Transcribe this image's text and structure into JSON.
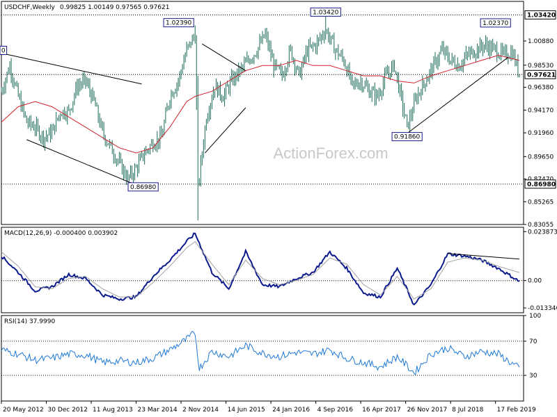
{
  "header": {
    "symbol": "USDCHF,Weekly",
    "ohlc": "0.99825 1.00149 0.97565 0.97621"
  },
  "watermark": "ActionForex.com",
  "colors": {
    "price_bars": "#1c6b5a",
    "sma": "#d0202a",
    "macd_line": "#0a1a8c",
    "signal_line": "#a0a0a0",
    "rsi_line": "#1e78d6",
    "trendline": "#000000",
    "level_line": "#000000"
  },
  "chart_data": [
    {
      "type": "candlestick",
      "panel": "price",
      "title": "USDCHF,Weekly",
      "ohlc_last": {
        "open": 0.99825,
        "high": 1.00149,
        "low": 0.97565,
        "close": 0.97621
      },
      "y_ticks": [
        "1.00880",
        "0.98530",
        "0.96380",
        "0.94170",
        "0.91960",
        "0.89650",
        "0.87470",
        "0.85265",
        "0.83055"
      ],
      "y_tick_values": [
        1.0088,
        0.9853,
        0.9638,
        0.9417,
        0.9196,
        0.8965,
        0.8747,
        0.85265,
        0.83055
      ],
      "ylim": [
        0.83055,
        1.0473
      ],
      "right_price_labels": [
        {
          "label": "1.03420",
          "value": 1.0342
        },
        {
          "label": "0.97621",
          "value": 0.97621
        },
        {
          "label": "0.86980",
          "value": 0.8698
        }
      ],
      "annotations": [
        {
          "label": "0",
          "value": 0.997,
          "week": 0
        },
        {
          "label": "1.02390",
          "value": 1.0239,
          "week": 138
        },
        {
          "label": "1.03420",
          "value": 1.0342,
          "week": 231
        },
        {
          "label": "1.02370",
          "value": 1.0237,
          "week": 352
        },
        {
          "label": "0.91860",
          "value": 0.9186,
          "week": 289
        },
        {
          "label": "0.86980",
          "value": 0.8698,
          "week": 101
        }
      ],
      "levels": [
        1.0342,
        0.97621,
        0.8698
      ],
      "series": [
        {
          "type": "bar",
          "weeks": [
            0,
            6,
            12,
            18,
            24,
            30,
            36,
            42,
            48,
            54,
            60,
            66,
            72,
            78,
            84,
            90,
            96,
            102,
            108,
            114,
            120,
            126,
            132,
            138,
            140,
            146,
            152,
            158,
            164,
            170,
            176,
            182,
            188,
            194,
            200,
            206,
            212,
            218,
            224,
            231,
            238,
            244,
            250,
            256,
            262,
            268,
            274,
            280,
            286,
            289,
            296,
            302,
            308,
            314,
            320,
            326,
            332,
            338,
            344,
            352,
            358,
            364,
            369
          ],
          "close": [
            0.96,
            0.985,
            0.955,
            0.93,
            0.925,
            0.915,
            0.92,
            0.94,
            0.94,
            0.965,
            0.97,
            0.95,
            0.92,
            0.905,
            0.89,
            0.875,
            0.885,
            0.9,
            0.91,
            0.915,
            0.955,
            0.97,
            1.0,
            1.015,
            0.865,
            0.935,
            0.965,
            0.955,
            0.97,
            0.98,
            0.99,
            1.0,
            1.015,
            0.985,
            0.975,
            1.0,
            0.975,
            1.0,
            1.005,
            1.02,
            1.0,
            0.99,
            0.965,
            0.97,
            0.96,
            0.955,
            0.975,
            0.985,
            0.945,
            0.925,
            0.955,
            0.97,
            0.985,
            1.0,
            0.99,
            0.985,
            0.995,
            1.0,
            1.005,
            1.0,
            0.995,
            0.998,
            0.9762
          ]
        },
        {
          "name": "",
          "type": "line",
          "weeks": [
            0,
            12,
            24,
            36,
            48,
            60,
            72,
            84,
            96,
            108,
            120,
            132,
            138,
            150,
            162,
            174,
            186,
            198,
            210,
            222,
            234,
            246,
            258,
            270,
            282,
            294,
            306,
            318,
            330,
            342,
            354,
            369
          ],
          "values": [
            0.93,
            0.945,
            0.95,
            0.945,
            0.935,
            0.925,
            0.915,
            0.905,
            0.9,
            0.905,
            0.925,
            0.95,
            0.955,
            0.96,
            0.97,
            0.98,
            0.985,
            0.985,
            0.99,
            0.985,
            0.985,
            0.98,
            0.975,
            0.975,
            0.97,
            0.968,
            0.975,
            0.98,
            0.985,
            0.99,
            0.995,
            0.99
          ]
        }
      ],
      "trendlines": [
        {
          "from": {
            "week": 0,
            "value": 0.997
          },
          "to": {
            "week": 100,
            "value": 0.967
          }
        },
        {
          "from": {
            "week": 18,
            "value": 0.913
          },
          "to": {
            "week": 103,
            "value": 0.865
          }
        },
        {
          "from": {
            "week": 143,
            "value": 1.006
          },
          "to": {
            "week": 174,
            "value": 0.98
          }
        },
        {
          "from": {
            "week": 145,
            "value": 0.9
          },
          "to": {
            "week": 174,
            "value": 0.944
          }
        },
        {
          "from": {
            "week": 288,
            "value": 0.918
          },
          "to": {
            "week": 361,
            "value": 0.993
          }
        }
      ]
    },
    {
      "type": "line",
      "panel": "macd",
      "title": "MACD(12,26,9) -0.000400 0.003902",
      "y_ticks": [
        "0.023873",
        "0.00",
        "-0.013346"
      ],
      "y_tick_values": [
        0.023873,
        0.0,
        -0.013346
      ],
      "ylim": [
        -0.0157,
        0.026
      ],
      "weeks": [
        0,
        12,
        24,
        36,
        48,
        60,
        72,
        84,
        96,
        108,
        120,
        132,
        138,
        150,
        162,
        174,
        186,
        198,
        210,
        222,
        234,
        246,
        258,
        270,
        282,
        294,
        306,
        318,
        330,
        342,
        354,
        369
      ],
      "series": [
        {
          "name": "MACD(12,26,9)",
          "values": [
            0.012,
            0.004,
            -0.005,
            -0.003,
            0.003,
            0.001,
            -0.007,
            -0.009,
            -0.008,
            0.002,
            0.01,
            0.019,
            0.023,
            0.004,
            -0.004,
            0.014,
            -0.002,
            -0.003,
            0.001,
            0.004,
            0.014,
            0.006,
            -0.006,
            -0.008,
            0.006,
            -0.012,
            -0.002,
            0.013,
            0.012,
            0.01,
            0.006,
            -0.0004
          ]
        },
        {
          "name": "signal",
          "values": [
            0.014,
            0.007,
            -0.003,
            -0.004,
            0.001,
            0.002,
            -0.004,
            -0.008,
            -0.008,
            -0.001,
            0.007,
            0.016,
            0.019,
            0.008,
            -0.002,
            0.01,
            0.001,
            -0.002,
            0.0,
            0.003,
            0.011,
            0.008,
            -0.002,
            -0.007,
            0.002,
            -0.009,
            -0.004,
            0.009,
            0.011,
            0.01,
            0.007,
            0.0039
          ]
        }
      ],
      "trendlines": [
        {
          "from": {
            "week": 318,
            "value": 0.0132
          },
          "to": {
            "week": 369,
            "value": 0.0105
          }
        }
      ]
    },
    {
      "type": "line",
      "panel": "rsi",
      "title": "RSI(14) 37.9990",
      "y_ticks": [
        "100",
        "70",
        "30"
      ],
      "y_tick_values": [
        100,
        70,
        30
      ],
      "ylim": [
        0,
        100
      ],
      "weeks": [
        0,
        12,
        24,
        36,
        48,
        60,
        72,
        84,
        96,
        108,
        120,
        132,
        138,
        141,
        150,
        162,
        174,
        186,
        198,
        210,
        222,
        234,
        246,
        258,
        270,
        282,
        294,
        306,
        318,
        330,
        342,
        354,
        369
      ],
      "series": [
        {
          "name": "RSI(14)",
          "values": [
            60,
            55,
            48,
            50,
            55,
            54,
            45,
            47,
            45,
            50,
            60,
            72,
            80,
            38,
            58,
            52,
            65,
            56,
            52,
            57,
            55,
            60,
            50,
            45,
            40,
            52,
            33,
            55,
            62,
            52,
            58,
            55,
            38
          ]
        }
      ]
    }
  ],
  "x_labels": [
    {
      "label": "20 May 2012",
      "week": 0
    },
    {
      "label": "30 Dec 2012",
      "week": 32
    },
    {
      "label": "11 Aug 2013",
      "week": 64
    },
    {
      "label": "23 Mar 2014",
      "week": 96
    },
    {
      "label": "2 Nov 2014",
      "week": 128
    },
    {
      "label": "14 Jun 2015",
      "week": 160
    },
    {
      "label": "24 Jan 2016",
      "week": 192
    },
    {
      "label": "4 Sep 2016",
      "week": 224
    },
    {
      "label": "16 Apr 2017",
      "week": 256
    },
    {
      "label": "26 Nov 2017",
      "week": 288
    },
    {
      "label": "8 Jul 2018",
      "week": 320
    },
    {
      "label": "17 Feb 2019",
      "week": 352
    }
  ]
}
